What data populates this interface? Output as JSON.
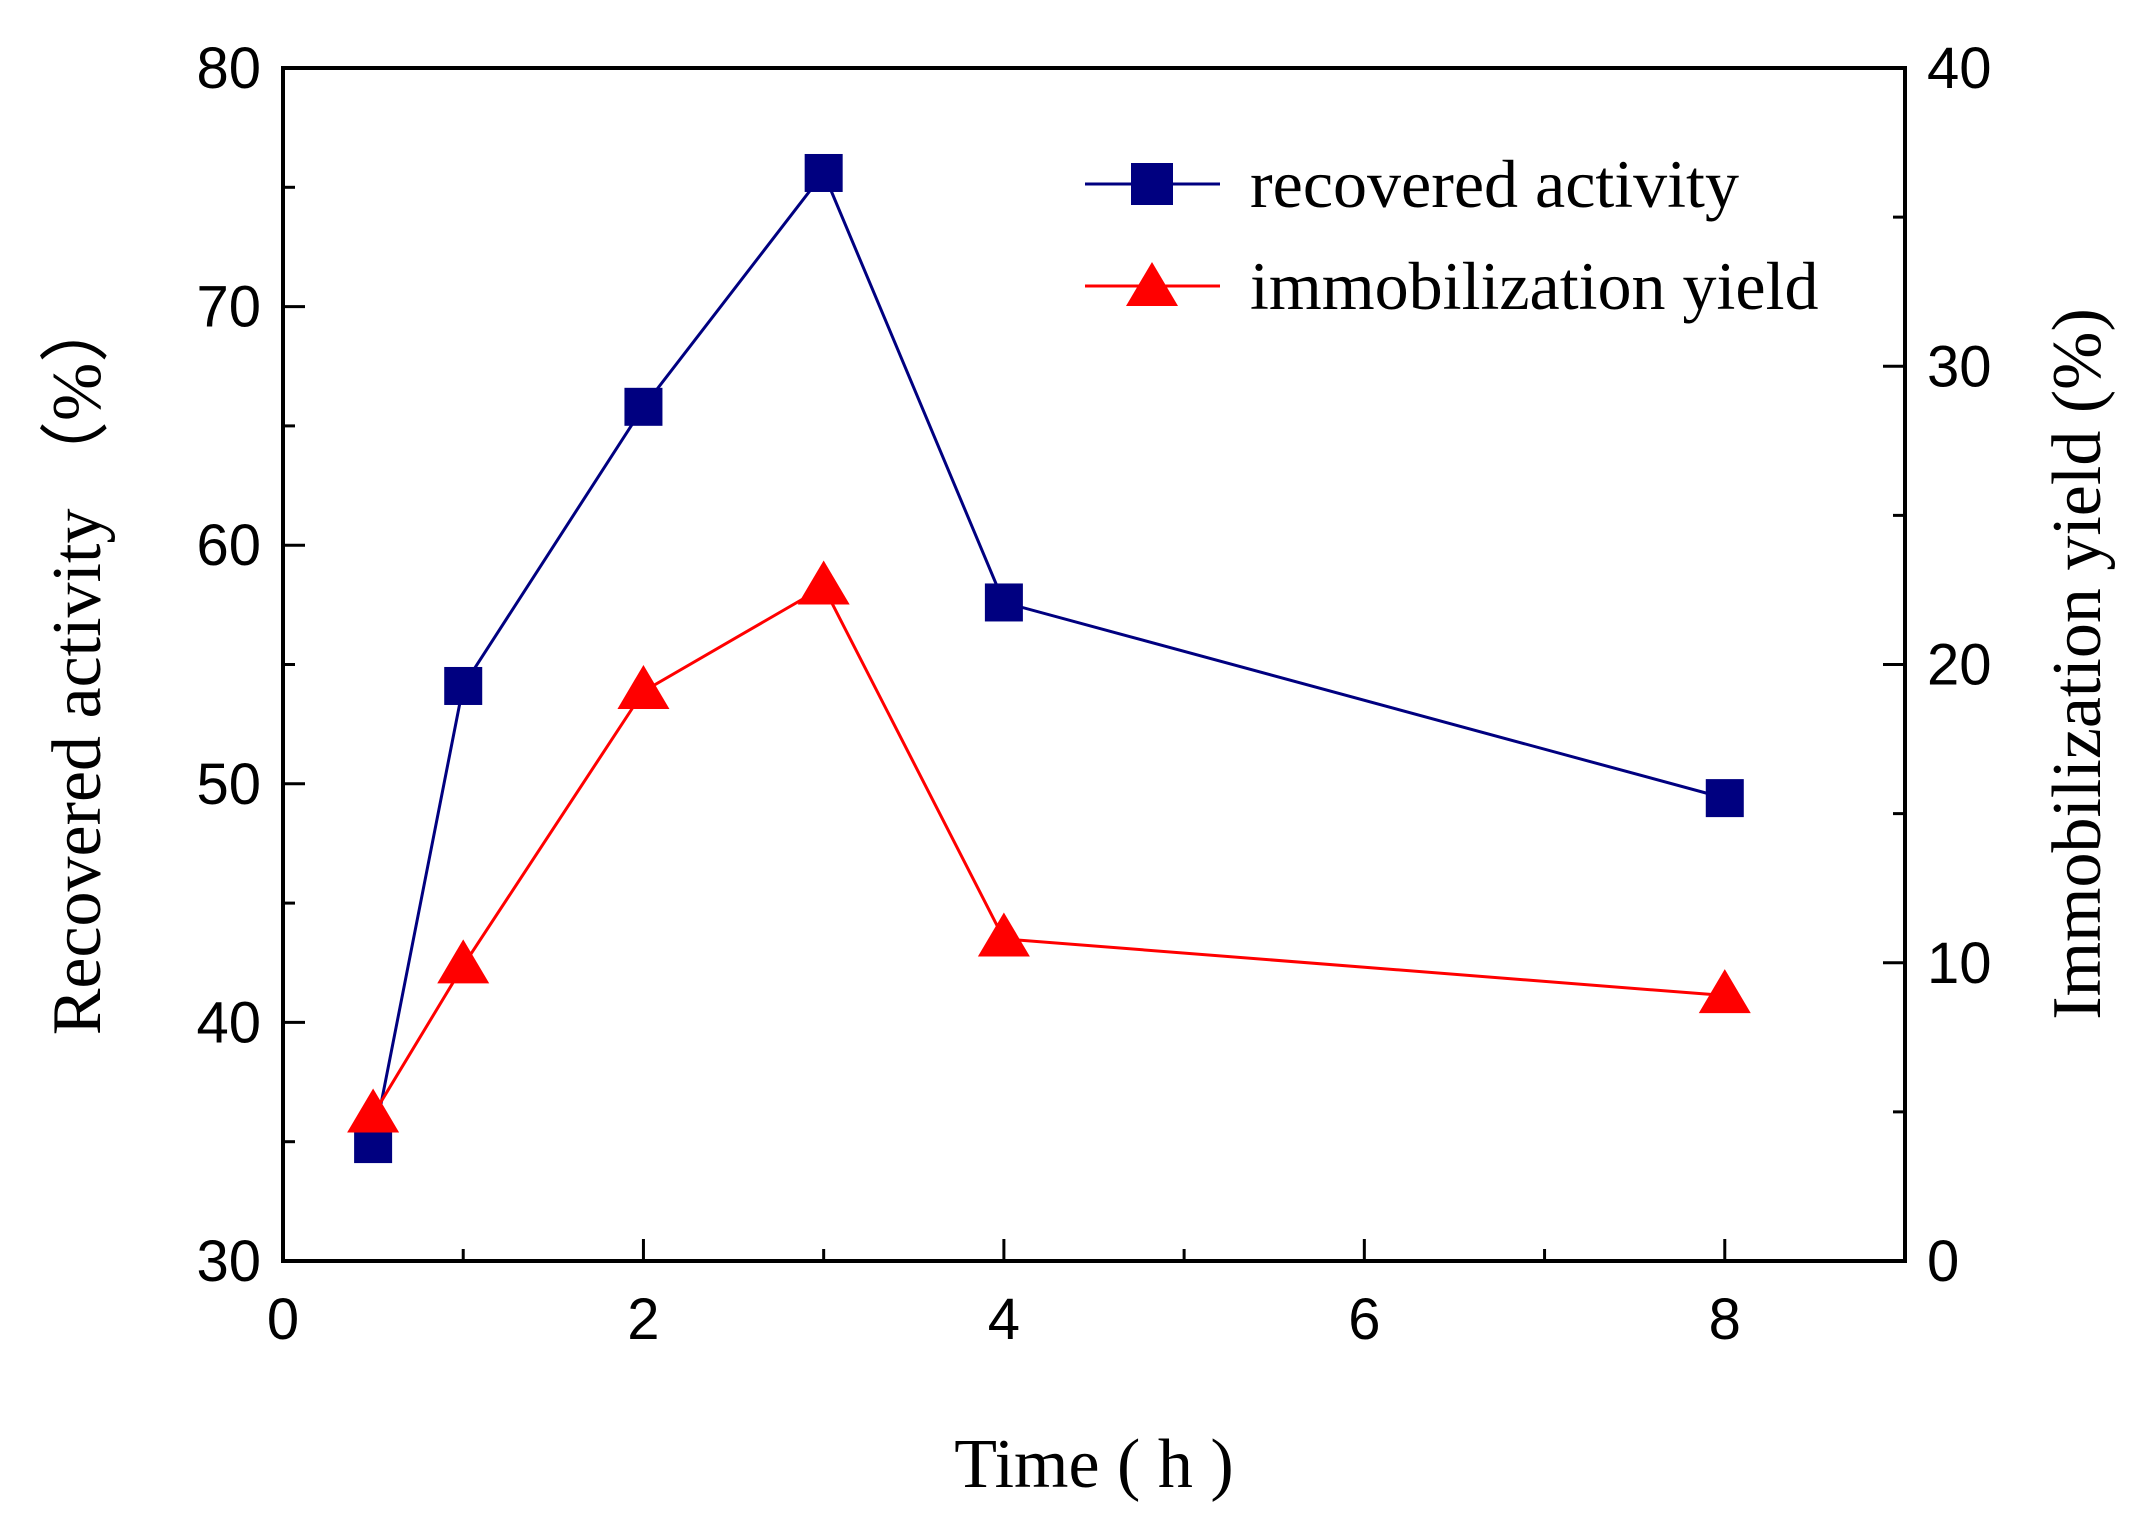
{
  "chart_data": {
    "type": "line",
    "title": "",
    "xlabel": "Time ( h )",
    "ylabel_left": "Recovered activity （%）",
    "ylabel_right": "Immobilization yield (%)",
    "xlim": [
      0,
      9
    ],
    "ylim_left": [
      30,
      80
    ],
    "ylim_right": [
      0,
      40
    ],
    "x_ticks": [
      0,
      2,
      4,
      6,
      8
    ],
    "y_left_ticks": [
      30,
      40,
      50,
      60,
      70,
      80
    ],
    "y_right_ticks": [
      0,
      10,
      20,
      30,
      40
    ],
    "legend_position": "top-right",
    "grid": false,
    "series": [
      {
        "name": "recovered activity",
        "axis": "left",
        "marker": "square",
        "color": "#000080",
        "x": [
          0.5,
          1,
          2,
          3,
          4,
          8
        ],
        "values": [
          34.9,
          54.1,
          65.8,
          75.6,
          57.6,
          49.4
        ]
      },
      {
        "name": "immobilization yield",
        "axis": "right",
        "marker": "triangle",
        "color": "#ff0000",
        "x": [
          0.5,
          1,
          2,
          3,
          4,
          8
        ],
        "values": [
          4.9,
          9.9,
          19.1,
          22.6,
          10.8,
          8.9
        ]
      }
    ]
  }
}
